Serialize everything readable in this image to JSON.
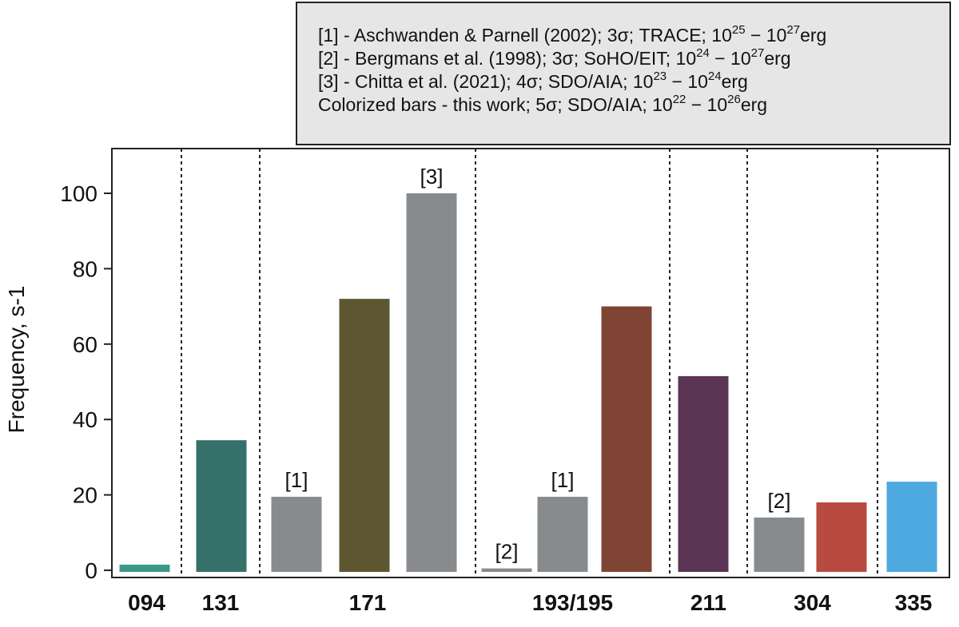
{
  "chart_data": {
    "type": "bar",
    "ylabel": "Frequency, s-1",
    "xlabel": "",
    "ylim": [
      0,
      110
    ],
    "yticks": [
      0,
      20,
      40,
      60,
      80,
      100
    ],
    "grid": false,
    "legend_position": "top-right",
    "groups": [
      {
        "label": "094",
        "bars": [
          {
            "value": 1.5,
            "color": "#3a9a85",
            "source": "this work",
            "label": ""
          }
        ]
      },
      {
        "label": "131",
        "bars": [
          {
            "value": 34.5,
            "color": "#36706b",
            "source": "this work",
            "label": ""
          }
        ]
      },
      {
        "label": "171",
        "bars": [
          {
            "value": 19.5,
            "color": "#888b8e",
            "source": "literature",
            "label": "[1]"
          },
          {
            "value": 72,
            "color": "#5d5630",
            "source": "this work",
            "label": ""
          },
          {
            "value": 100,
            "color": "#888b8e",
            "source": "literature",
            "label": "[3]"
          }
        ]
      },
      {
        "label": "193/195",
        "bars": [
          {
            "value": 0.5,
            "color": "#888b8e",
            "source": "literature",
            "label": "[2]"
          },
          {
            "value": 19.5,
            "color": "#888b8e",
            "source": "literature",
            "label": "[1]"
          },
          {
            "value": 70,
            "color": "#7f4433",
            "source": "this work",
            "label": ""
          }
        ]
      },
      {
        "label": "211",
        "bars": [
          {
            "value": 51.5,
            "color": "#5b3554",
            "source": "this work",
            "label": ""
          }
        ]
      },
      {
        "label": "304",
        "bars": [
          {
            "value": 14,
            "color": "#888b8e",
            "source": "literature",
            "label": "[2]"
          },
          {
            "value": 18,
            "color": "#b84a40",
            "source": "this work",
            "label": ""
          }
        ]
      },
      {
        "label": "335",
        "bars": [
          {
            "value": 23.5,
            "color": "#4ea9e0",
            "source": "this work",
            "label": ""
          }
        ]
      }
    ],
    "legend": [
      {
        "pre": "[1] - Aschwanden & Parnell (2002); 3σ; TRACE; 10",
        "e1": "25",
        "mid": " − 10",
        "e2": "27",
        "post": "erg"
      },
      {
        "pre": "[2] - Bergmans et al. (1998); 3σ; SoHO/EIT; 10",
        "e1": "24",
        "mid": " − 10",
        "e2": "27",
        "post": "erg"
      },
      {
        "pre": "[3] - Chitta et al. (2021); 4σ; SDO/AIA; 10",
        "e1": "23",
        "mid": " − 10",
        "e2": "24",
        "post": "erg"
      },
      {
        "pre": "Colorized bars - this work; 5σ; SDO/AIA; 10",
        "e1": "22",
        "mid": " − 10",
        "e2": "26",
        "post": "erg"
      }
    ]
  },
  "colors": {
    "legend_bg": "#e6e6e6",
    "axis": "#222222",
    "literature_bar": "#888b8e"
  }
}
